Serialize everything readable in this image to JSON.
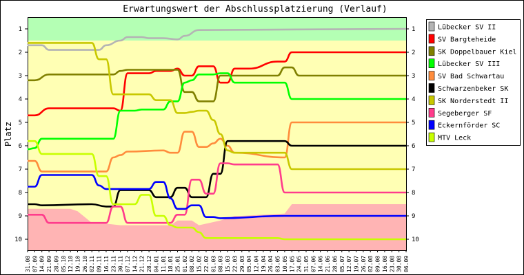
{
  "chart_data": {
    "type": "line",
    "title": "Erwartungswert der Abschlussplatzierung (Verlauf)",
    "ylabel": "Platz",
    "xlabel": "",
    "y_ticks": [
      1,
      2,
      3,
      4,
      5,
      6,
      7,
      8,
      9,
      10
    ],
    "y_inverted": true,
    "grid": false,
    "legend_position": "right",
    "x": [
      "31.08",
      "07.09",
      "14.09",
      "21.09",
      "28.09",
      "05.10",
      "12.10",
      "19.10",
      "26.10",
      "02.11",
      "09.11",
      "16.11",
      "23.11",
      "30.11",
      "07.12",
      "14.12",
      "21.12",
      "28.12",
      "04.01",
      "11.01",
      "18.01",
      "25.01",
      "01.02",
      "08.02",
      "15.02",
      "22.02",
      "01.03",
      "08.03",
      "15.03",
      "22.03",
      "29.03",
      "05.04",
      "12.04",
      "19.04",
      "26.04",
      "03.05",
      "10.05",
      "17.05",
      "24.05",
      "31.05",
      "07.06",
      "14.06",
      "21.06",
      "28.06",
      "05.07",
      "12.07",
      "19.07",
      "26.07",
      "02.08",
      "09.08",
      "16.08",
      "23.08",
      "30.08",
      "06.09"
    ],
    "background_zones": {
      "top_zone_rank": 1.5,
      "bottom_zone": [
        {
          "x": "31.08",
          "rank": 8.7
        },
        {
          "x": "12.10",
          "rank": 8.7
        },
        {
          "x": "19.10",
          "rank": 8.8
        },
        {
          "x": "02.11",
          "rank": 9.3
        },
        {
          "x": "09.11",
          "rank": 9.3
        },
        {
          "x": "30.11",
          "rank": 9.4
        },
        {
          "x": "18.01",
          "rank": 9.4
        },
        {
          "x": "25.01",
          "rank": 9.2
        },
        {
          "x": "08.02",
          "rank": 9.2
        },
        {
          "x": "15.02",
          "rank": 9.4
        },
        {
          "x": "08.03",
          "rank": 9.2
        },
        {
          "x": "22.03",
          "rank": 9.0
        },
        {
          "x": "29.03",
          "rank": 9.0
        },
        {
          "x": "10.05",
          "rank": 8.9
        },
        {
          "x": "17.05",
          "rank": 8.5
        },
        {
          "x": "06.09",
          "rank": 8.5
        }
      ]
    },
    "series": [
      {
        "name": "Lübecker SV II",
        "color": "#b4b4b4",
        "points": [
          [
            "31.08",
            1.7
          ],
          [
            "14.09",
            1.7
          ],
          [
            "21.09",
            1.9
          ],
          [
            "09.11",
            1.9
          ],
          [
            "16.11",
            1.7
          ],
          [
            "30.11",
            1.5
          ],
          [
            "07.12",
            1.35
          ],
          [
            "21.12",
            1.35
          ],
          [
            "28.12",
            1.4
          ],
          [
            "11.01",
            1.4
          ],
          [
            "25.01",
            1.45
          ],
          [
            "01.02",
            1.3
          ],
          [
            "15.02",
            1.05
          ],
          [
            "06.09",
            1.0
          ]
        ]
      },
      {
        "name": "SV Bargteheide",
        "color": "#ff0000",
        "points": [
          [
            "31.08",
            4.7
          ],
          [
            "07.09",
            4.7
          ],
          [
            "21.09",
            4.4
          ],
          [
            "23.11",
            4.4
          ],
          [
            "30.11",
            4.5
          ],
          [
            "07.12",
            2.9
          ],
          [
            "28.12",
            2.9
          ],
          [
            "04.01",
            2.8
          ],
          [
            "18.01",
            2.8
          ],
          [
            "25.01",
            2.7
          ],
          [
            "01.02",
            3.0
          ],
          [
            "08.02",
            3.0
          ],
          [
            "15.02",
            2.6
          ],
          [
            "22.02",
            2.6
          ],
          [
            "01.03",
            2.6
          ],
          [
            "08.03",
            3.3
          ],
          [
            "15.03",
            3.3
          ],
          [
            "22.03",
            2.7
          ],
          [
            "29.03",
            2.7
          ],
          [
            "05.04",
            2.7
          ],
          [
            "03.05",
            2.4
          ],
          [
            "10.05",
            2.4
          ],
          [
            "17.05",
            2.0
          ],
          [
            "06.09",
            2.0
          ]
        ]
      },
      {
        "name": "SK Doppelbauer Kiel",
        "color": "#808000",
        "points": [
          [
            "31.08",
            3.2
          ],
          [
            "07.09",
            3.2
          ],
          [
            "21.09",
            2.95
          ],
          [
            "23.11",
            2.95
          ],
          [
            "30.11",
            2.8
          ],
          [
            "07.12",
            2.75
          ],
          [
            "25.01",
            2.75
          ],
          [
            "01.02",
            3.7
          ],
          [
            "08.02",
            3.7
          ],
          [
            "15.02",
            4.1
          ],
          [
            "22.02",
            4.1
          ],
          [
            "01.03",
            4.1
          ],
          [
            "08.03",
            3.0
          ],
          [
            "15.03",
            3.0
          ],
          [
            "22.03",
            3.0
          ],
          [
            "03.05",
            3.0
          ],
          [
            "10.05",
            2.65
          ],
          [
            "17.05",
            2.65
          ],
          [
            "24.05",
            3.0
          ],
          [
            "06.09",
            3.0
          ]
        ]
      },
      {
        "name": "Lübecker SV III",
        "color": "#00ff00",
        "points": [
          [
            "31.08",
            6.15
          ],
          [
            "07.09",
            6.1
          ],
          [
            "14.09",
            5.7
          ],
          [
            "23.11",
            5.7
          ],
          [
            "30.11",
            4.5
          ],
          [
            "14.12",
            4.5
          ],
          [
            "21.12",
            4.45
          ],
          [
            "11.01",
            4.45
          ],
          [
            "18.01",
            4.1
          ],
          [
            "25.01",
            4.1
          ],
          [
            "01.02",
            3.3
          ],
          [
            "08.02",
            3.2
          ],
          [
            "15.02",
            2.95
          ],
          [
            "01.03",
            2.95
          ],
          [
            "08.03",
            2.9
          ],
          [
            "15.03",
            2.9
          ],
          [
            "22.03",
            3.3
          ],
          [
            "10.05",
            3.3
          ],
          [
            "17.05",
            4.0
          ],
          [
            "06.09",
            4.0
          ]
        ]
      },
      {
        "name": "SV Bad Schwartau",
        "color": "#ff8c3c",
        "points": [
          [
            "31.08",
            6.65
          ],
          [
            "07.09",
            6.65
          ],
          [
            "14.09",
            7.1
          ],
          [
            "16.11",
            7.1
          ],
          [
            "23.11",
            6.5
          ],
          [
            "30.11",
            6.4
          ],
          [
            "07.12",
            6.25
          ],
          [
            "11.01",
            6.2
          ],
          [
            "18.01",
            6.3
          ],
          [
            "25.01",
            6.3
          ],
          [
            "01.02",
            5.4
          ],
          [
            "08.02",
            5.4
          ],
          [
            "15.02",
            6.05
          ],
          [
            "22.02",
            6.05
          ],
          [
            "01.03",
            5.9
          ],
          [
            "08.03",
            5.7
          ],
          [
            "15.03",
            6.0
          ],
          [
            "22.03",
            6.3
          ],
          [
            "10.05",
            6.5
          ],
          [
            "17.05",
            5.0
          ],
          [
            "06.09",
            5.0
          ]
        ]
      },
      {
        "name": "Schwarzenbeker SK",
        "color": "#000000",
        "points": [
          [
            "31.08",
            8.5
          ],
          [
            "07.09",
            8.5
          ],
          [
            "14.09",
            8.55
          ],
          [
            "02.11",
            8.5
          ],
          [
            "16.11",
            8.6
          ],
          [
            "23.11",
            8.6
          ],
          [
            "30.11",
            7.9
          ],
          [
            "28.12",
            7.9
          ],
          [
            "04.01",
            8.2
          ],
          [
            "11.01",
            8.2
          ],
          [
            "18.01",
            8.2
          ],
          [
            "25.01",
            7.8
          ],
          [
            "01.02",
            7.8
          ],
          [
            "08.02",
            8.2
          ],
          [
            "15.02",
            8.2
          ],
          [
            "22.02",
            8.2
          ],
          [
            "01.03",
            7.2
          ],
          [
            "08.03",
            7.2
          ],
          [
            "15.03",
            5.8
          ],
          [
            "10.05",
            5.8
          ],
          [
            "17.05",
            6.0
          ],
          [
            "06.09",
            6.0
          ]
        ]
      },
      {
        "name": "SK Norderstedt II",
        "color": "#c8c800",
        "points": [
          [
            "31.08",
            1.6
          ],
          [
            "14.09",
            1.6
          ],
          [
            "02.11",
            1.6
          ],
          [
            "09.11",
            2.3
          ],
          [
            "16.11",
            2.3
          ],
          [
            "23.11",
            3.8
          ],
          [
            "07.12",
            3.8
          ],
          [
            "28.12",
            3.8
          ],
          [
            "04.01",
            4.05
          ],
          [
            "18.01",
            4.05
          ],
          [
            "25.01",
            4.6
          ],
          [
            "01.02",
            4.6
          ],
          [
            "08.02",
            4.55
          ],
          [
            "15.02",
            4.5
          ],
          [
            "22.02",
            4.5
          ],
          [
            "01.03",
            4.9
          ],
          [
            "08.03",
            5.5
          ],
          [
            "15.03",
            6.2
          ],
          [
            "22.03",
            6.3
          ],
          [
            "10.05",
            6.3
          ],
          [
            "17.05",
            7.0
          ],
          [
            "06.09",
            7.0
          ]
        ]
      },
      {
        "name": "Segeberger SF",
        "color": "#ff3c8c",
        "points": [
          [
            "31.08",
            8.95
          ],
          [
            "14.09",
            8.95
          ],
          [
            "21.09",
            9.3
          ],
          [
            "16.11",
            9.3
          ],
          [
            "23.11",
            8.6
          ],
          [
            "30.11",
            8.6
          ],
          [
            "07.12",
            9.3
          ],
          [
            "11.01",
            9.3
          ],
          [
            "18.01",
            9.3
          ],
          [
            "25.01",
            8.95
          ],
          [
            "01.02",
            8.95
          ],
          [
            "08.02",
            7.45
          ],
          [
            "15.02",
            7.45
          ],
          [
            "22.02",
            8.05
          ],
          [
            "01.03",
            8.05
          ],
          [
            "08.03",
            6.75
          ],
          [
            "15.03",
            6.75
          ],
          [
            "22.03",
            6.8
          ],
          [
            "03.05",
            6.8
          ],
          [
            "10.05",
            8.0
          ],
          [
            "06.09",
            8.0
          ]
        ]
      },
      {
        "name": "Eckernförder SC",
        "color": "#0000ff",
        "points": [
          [
            "31.08",
            7.75
          ],
          [
            "07.09",
            7.75
          ],
          [
            "14.09",
            7.25
          ],
          [
            "02.11",
            7.25
          ],
          [
            "09.11",
            7.7
          ],
          [
            "16.11",
            7.85
          ],
          [
            "23.11",
            7.85
          ],
          [
            "30.11",
            7.85
          ],
          [
            "28.12",
            7.85
          ],
          [
            "04.01",
            7.55
          ],
          [
            "11.01",
            7.55
          ],
          [
            "18.01",
            8.25
          ],
          [
            "25.01",
            8.7
          ],
          [
            "01.02",
            8.7
          ],
          [
            "08.02",
            8.55
          ],
          [
            "15.02",
            8.55
          ],
          [
            "22.02",
            9.05
          ],
          [
            "01.03",
            9.05
          ],
          [
            "08.03",
            9.1
          ],
          [
            "10.05",
            9.0
          ],
          [
            "17.05",
            9.0
          ],
          [
            "06.09",
            9.0
          ]
        ]
      },
      {
        "name": "MTV Leck",
        "color": "#c8ff00",
        "points": [
          [
            "31.08",
            5.8
          ],
          [
            "07.09",
            5.8
          ],
          [
            "14.09",
            6.35
          ],
          [
            "02.11",
            6.35
          ],
          [
            "09.11",
            7.3
          ],
          [
            "16.11",
            7.3
          ],
          [
            "23.11",
            8.5
          ],
          [
            "14.12",
            8.5
          ],
          [
            "21.12",
            8.1
          ],
          [
            "28.12",
            8.1
          ],
          [
            "04.01",
            9.0
          ],
          [
            "11.01",
            9.0
          ],
          [
            "18.01",
            9.4
          ],
          [
            "25.01",
            9.5
          ],
          [
            "08.02",
            9.5
          ],
          [
            "15.02",
            9.7
          ],
          [
            "22.02",
            9.95
          ],
          [
            "03.05",
            9.95
          ],
          [
            "10.05",
            10.0
          ],
          [
            "06.09",
            10.0
          ]
        ]
      }
    ]
  }
}
